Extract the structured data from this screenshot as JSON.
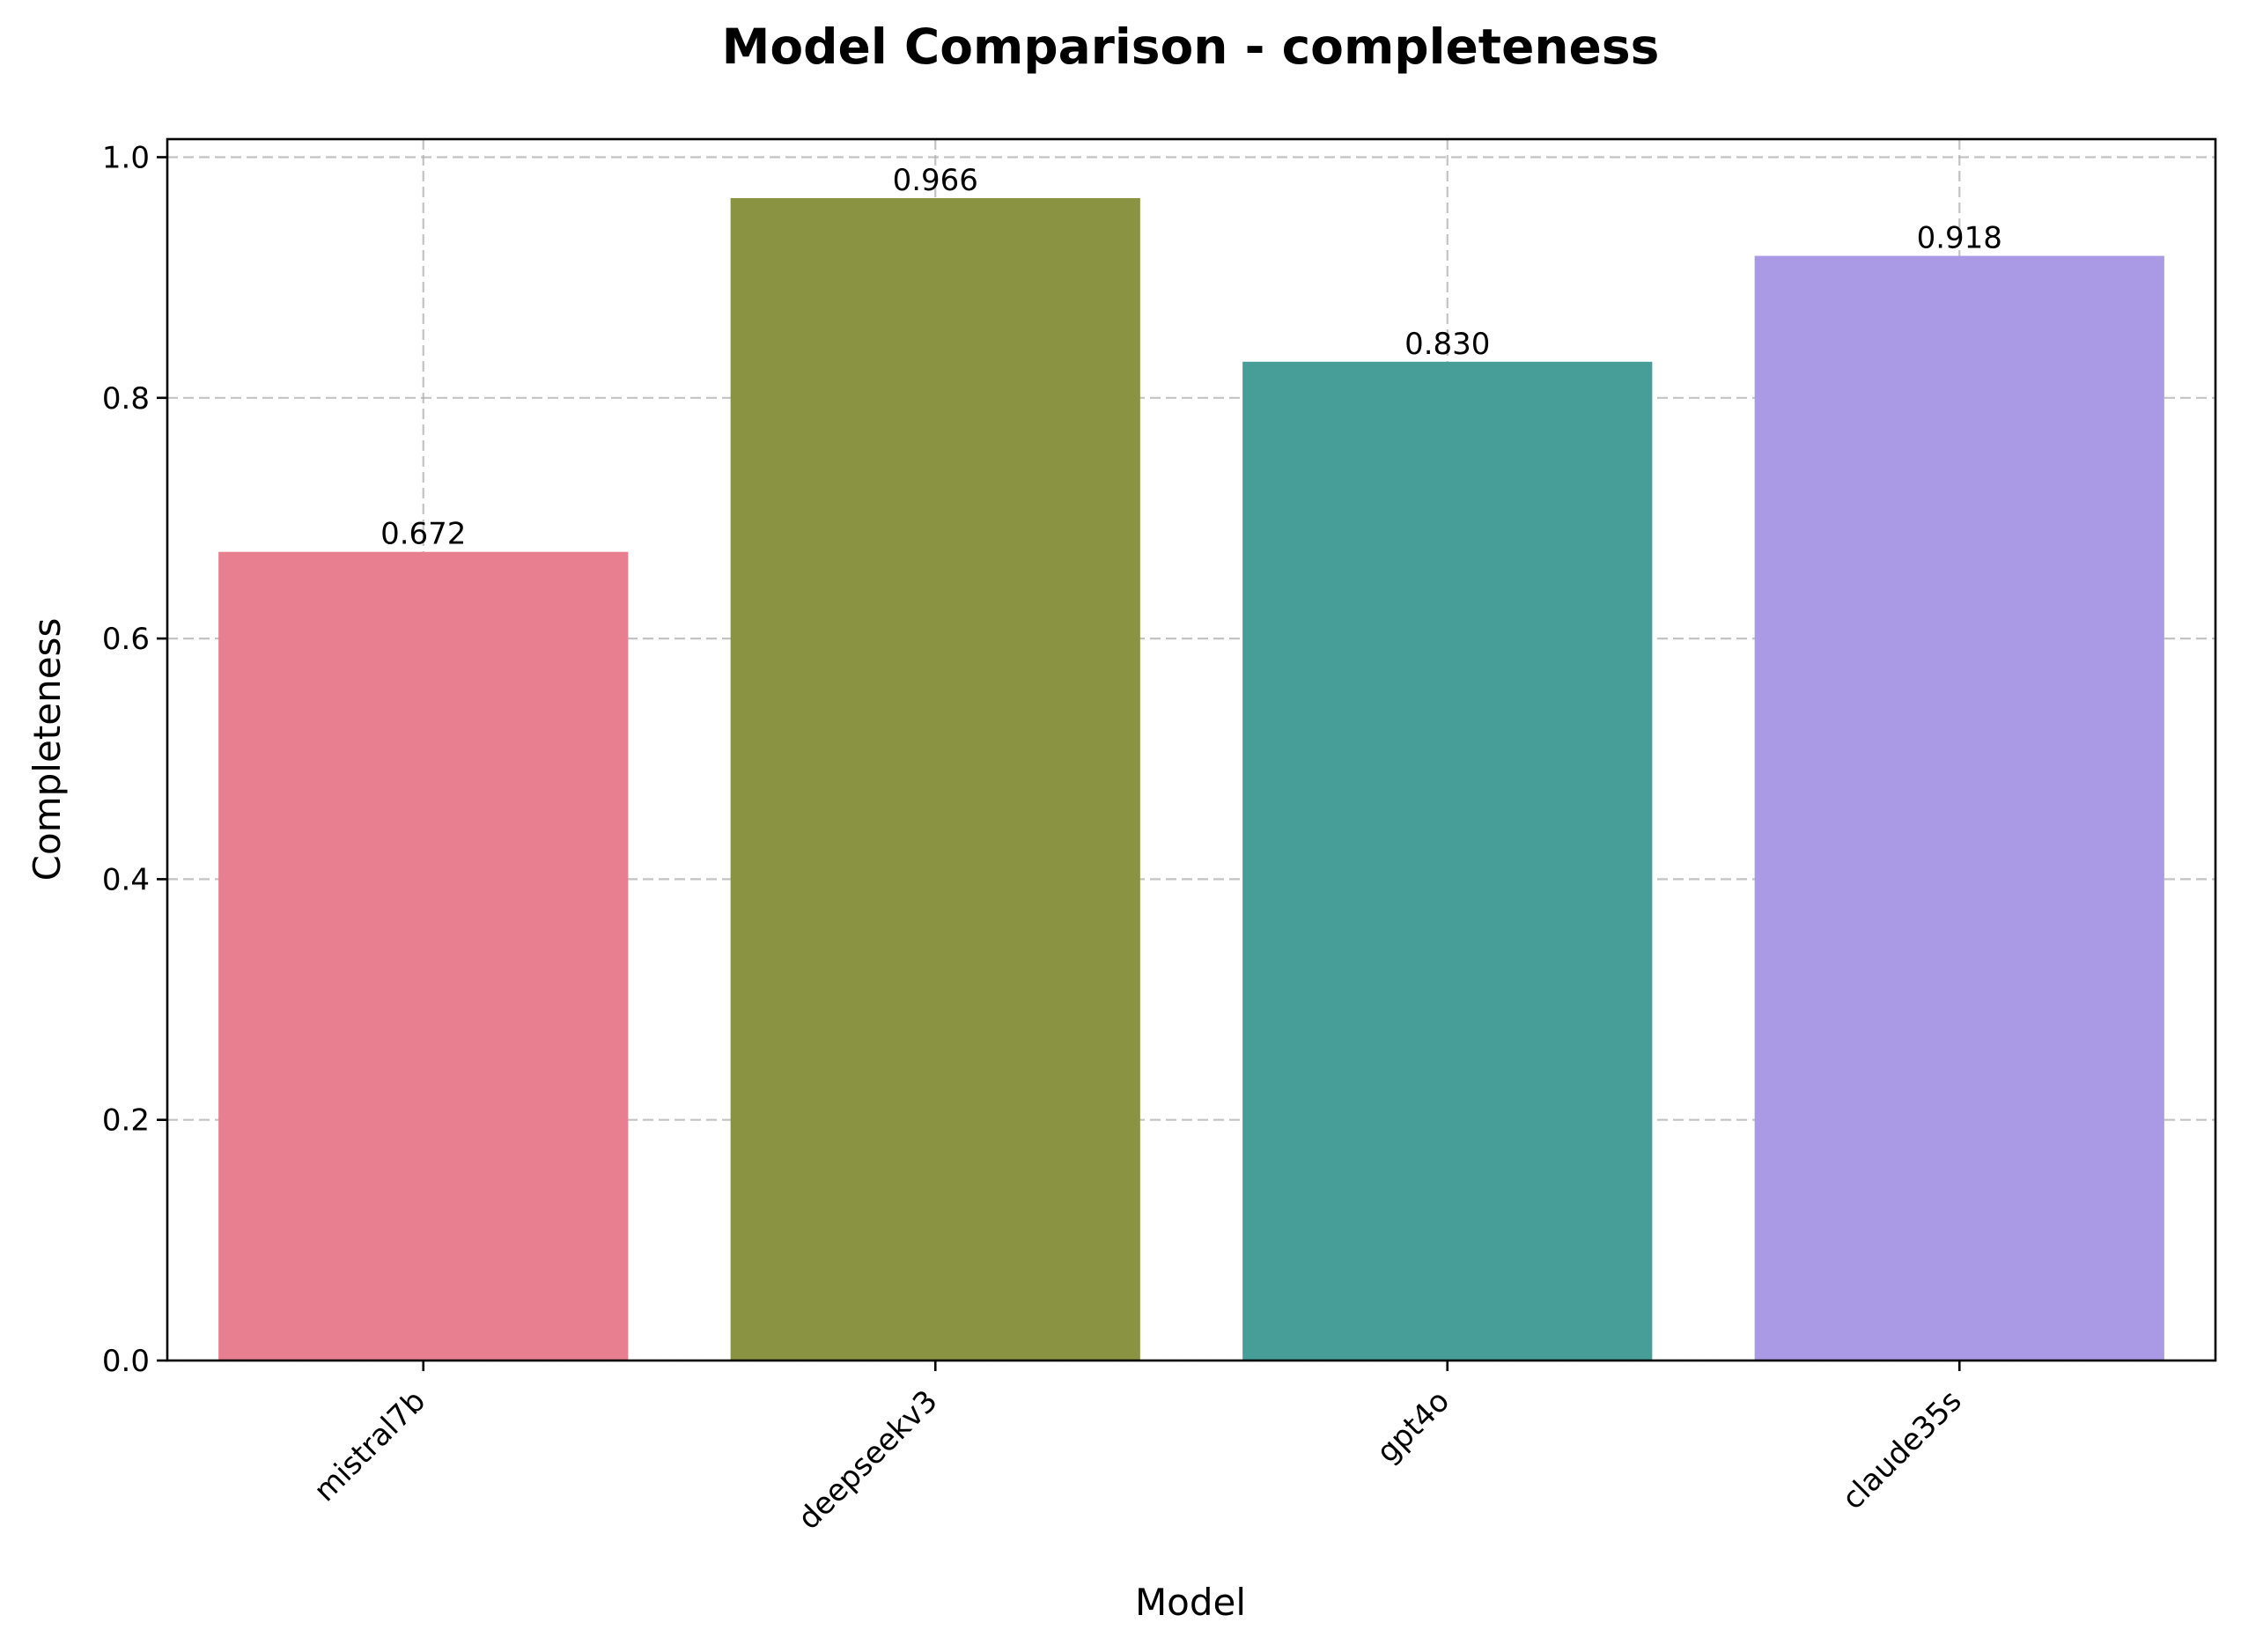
{
  "chart_data": {
    "type": "bar",
    "title": "Model Comparison - completeness",
    "xlabel": "Model",
    "ylabel": "Completeness",
    "categories": [
      "mistral7b",
      "deepseekv3",
      "gpt4o",
      "claude35s"
    ],
    "values": [
      0.672,
      0.966,
      0.83,
      0.918
    ],
    "value_labels": [
      "0.672",
      "0.966",
      "0.830",
      "0.918"
    ],
    "colors": [
      "#e77f91",
      "#8a9341",
      "#479e98",
      "#aa99e5"
    ],
    "ylim": [
      0,
      1.015
    ],
    "yticks": [
      0.0,
      0.2,
      0.4,
      0.6,
      0.8,
      1.0
    ],
    "ytick_labels": [
      "0.0",
      "0.2",
      "0.4",
      "0.6",
      "0.8",
      "1.0"
    ],
    "grid": true,
    "legend": "none"
  }
}
